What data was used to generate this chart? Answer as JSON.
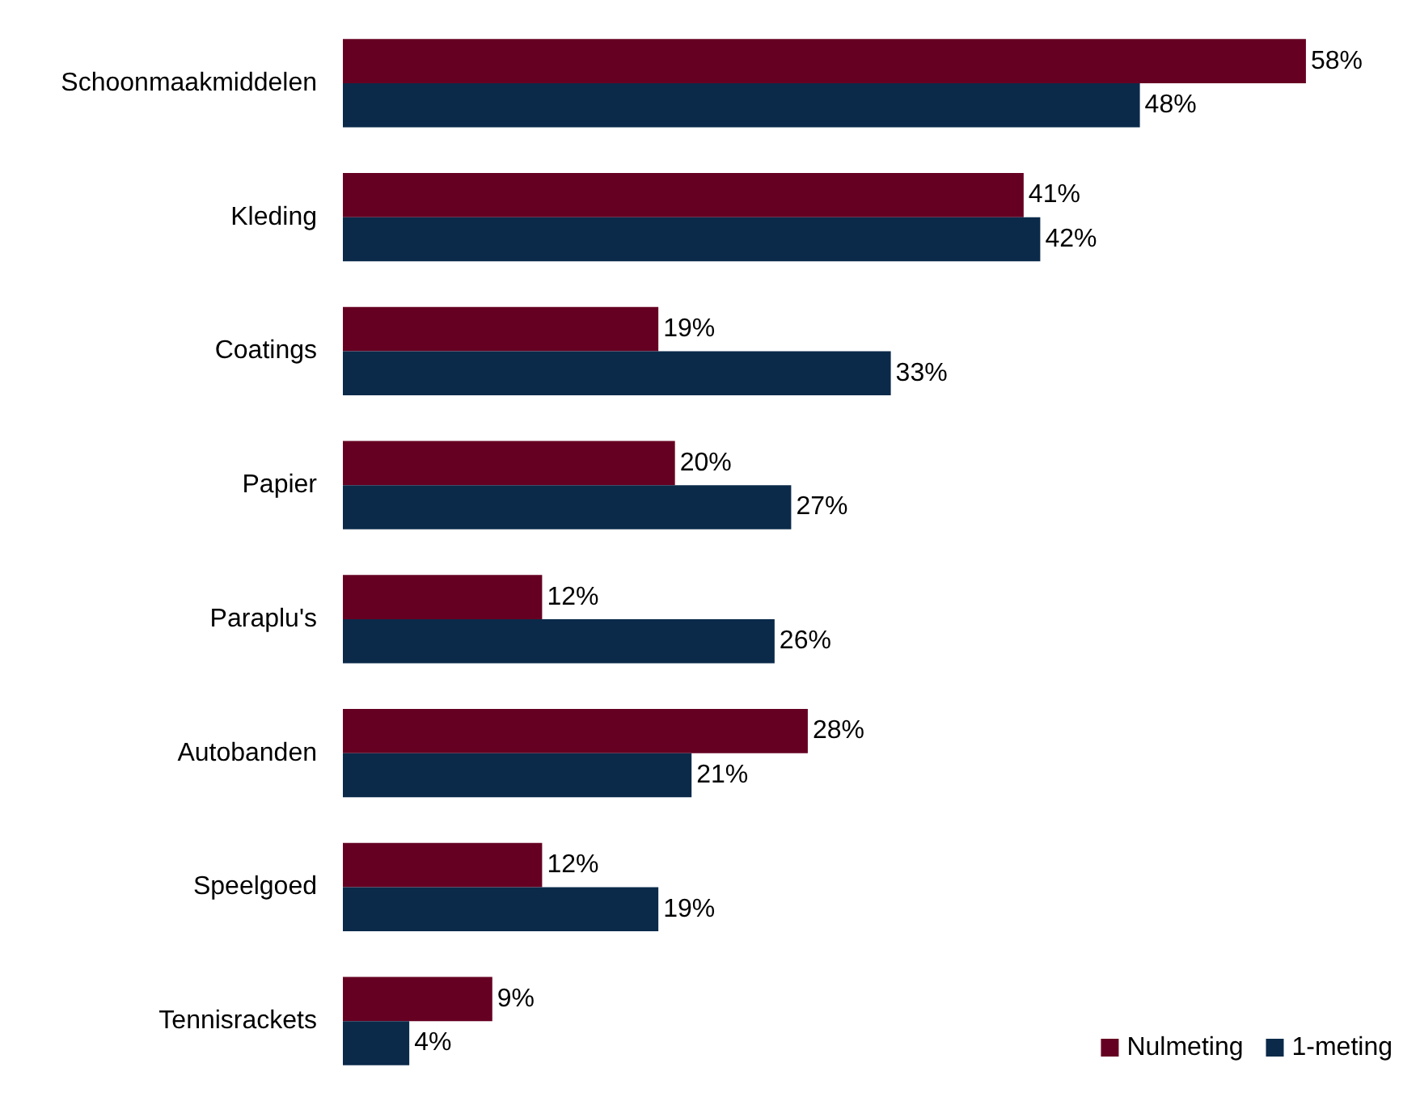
{
  "chart_data": {
    "type": "bar",
    "orientation": "horizontal",
    "categories": [
      "Schoonmaakmiddelen",
      "Kleding",
      "Coatings",
      "Papier",
      "Paraplu's",
      "Autobanden",
      "Speelgoed",
      "Tennisrackets"
    ],
    "series": [
      {
        "name": "Nulmeting",
        "color": "#660022",
        "values": [
          58,
          41,
          19,
          20,
          12,
          28,
          12,
          9
        ],
        "value_labels": [
          "58%",
          "41%",
          "19%",
          "20%",
          "12%",
          "28%",
          "12%",
          "9%"
        ]
      },
      {
        "name": "1-meting",
        "color": "#0b2a4a",
        "values": [
          48,
          42,
          33,
          27,
          26,
          21,
          19,
          4
        ],
        "value_labels": [
          "48%",
          "42%",
          "33%",
          "27%",
          "26%",
          "21%",
          "19%",
          "4%"
        ]
      }
    ],
    "legend": "bottom right",
    "tick_labels": "y"
  }
}
